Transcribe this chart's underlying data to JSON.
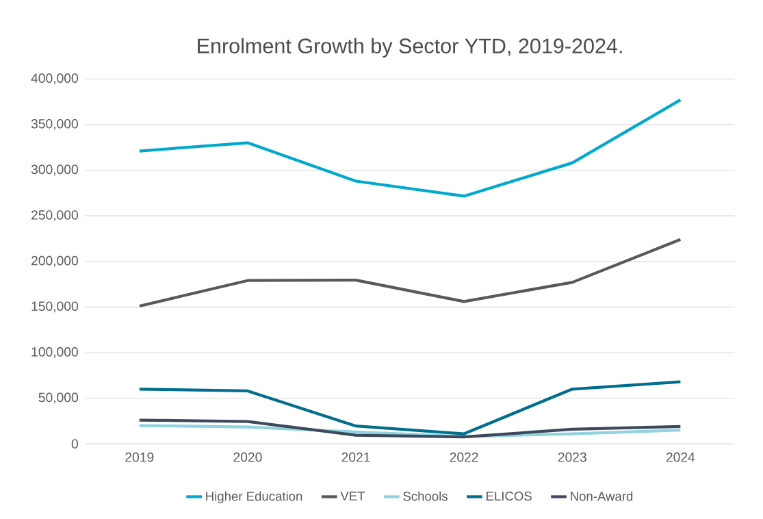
{
  "chart_data": {
    "type": "line",
    "title": "Enrolment Growth by Sector YTD, 2019-2024.",
    "categories": [
      "2019",
      "2020",
      "2021",
      "2022",
      "2023",
      "2024"
    ],
    "series": [
      {
        "name": "Higher Education",
        "color": "#00a9ce",
        "values": [
          321000,
          330000,
          288000,
          271500,
          308000,
          377000
        ]
      },
      {
        "name": "VET",
        "color": "#58595b",
        "values": [
          151000,
          179000,
          179500,
          156000,
          177000,
          224000
        ]
      },
      {
        "name": "Schools",
        "color": "#8fd3e0",
        "values": [
          20000,
          18500,
          13000,
          8000,
          11000,
          15000
        ]
      },
      {
        "name": "ELICOS",
        "color": "#006e8c",
        "values": [
          60000,
          58000,
          19500,
          11000,
          60000,
          68000
        ]
      },
      {
        "name": "Non-Award",
        "color": "#3e4a5c",
        "values": [
          26000,
          24500,
          9500,
          7500,
          16000,
          19000
        ]
      }
    ],
    "ylim": [
      0,
      400000
    ],
    "yticks": [
      {
        "value": 0,
        "label": "0"
      },
      {
        "value": 50000,
        "label": "50,000"
      },
      {
        "value": 100000,
        "label": "100,000"
      },
      {
        "value": 150000,
        "label": "150,000"
      },
      {
        "value": 200000,
        "label": "200,000"
      },
      {
        "value": 250000,
        "label": "250,000"
      },
      {
        "value": 300000,
        "label": "300,000"
      },
      {
        "value": 350000,
        "label": "350,000"
      },
      {
        "value": 400000,
        "label": "400,000"
      }
    ],
    "grid": "y",
    "legend": "bottom",
    "marker": "none",
    "line_style": "solid"
  }
}
